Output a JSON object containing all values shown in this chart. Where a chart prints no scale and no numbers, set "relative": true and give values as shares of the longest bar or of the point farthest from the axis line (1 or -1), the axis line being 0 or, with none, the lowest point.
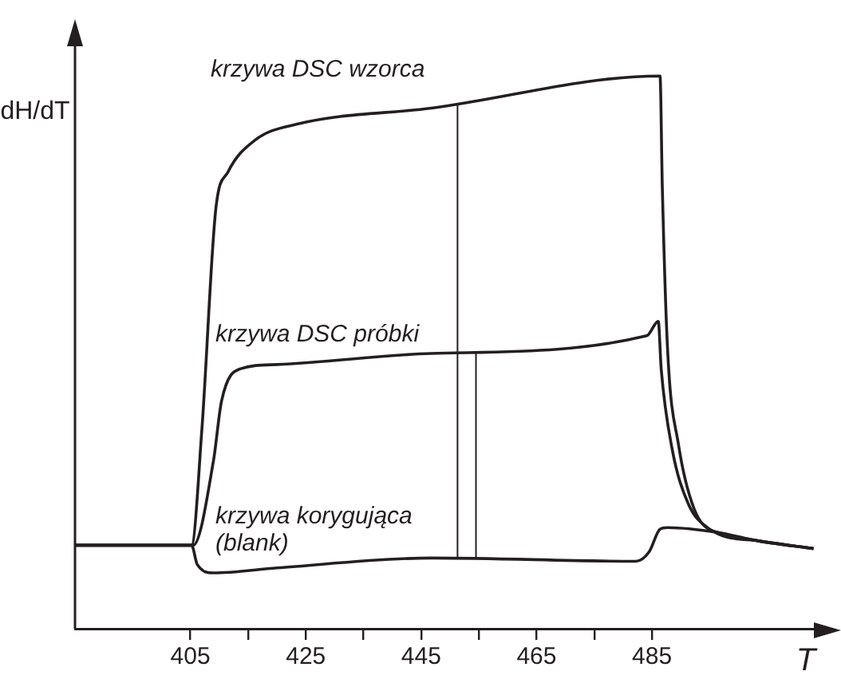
{
  "chart_data": {
    "type": "line",
    "relative": true,
    "xlabel": "T",
    "ylabel": "dH/dT",
    "xlim": [
      385,
      515
    ],
    "xticks": [
      405,
      {
        "value": 415,
        "label": null
      },
      425,
      {
        "value": 435,
        "label": null
      },
      445,
      {
        "value": 455,
        "label": null
      },
      465,
      {
        "value": 475,
        "label": null
      },
      485
    ],
    "grid": false,
    "legend": false,
    "marker": "none",
    "line_style": "solid",
    "series": [
      {
        "name": "krzywa DSC wzorca",
        "color": "#231f20",
        "x": [
          385,
          405.2,
          407,
          409.4,
          411.5,
          416.2,
          423.5,
          446.8,
          486.4,
          486.8,
          487.7,
          489.6,
          492.3,
          496,
          503.4,
          513
        ],
        "values": [
          0.151,
          0.151,
          0.362,
          0.759,
          0.826,
          0.884,
          0.913,
          0.942,
          1.0,
          0.797,
          0.507,
          0.333,
          0.217,
          0.174,
          0.159,
          0.145
        ]
      },
      {
        "name": "krzywa DSC próbki",
        "color": "#231f20",
        "x": [
          385,
          405.5,
          409,
          410.4,
          413.6,
          420,
          446.8,
          484.1,
          486.1,
          486.6,
          488.5,
          491.3,
          495,
          496.5,
          503.4,
          513
        ],
        "values": [
          0.151,
          0.151,
          0.304,
          0.412,
          0.47,
          0.478,
          0.498,
          0.53,
          0.556,
          0.47,
          0.325,
          0.226,
          0.18,
          0.174,
          0.159,
          0.145
        ]
      },
      {
        "name": "krzywa korygująca (blank)",
        "color": "#231f20",
        "x": [
          385,
          405.2,
          406.2,
          409,
          420,
          446.8,
          482.2,
          484.5,
          486.4,
          487.7,
          496.5,
          503.4,
          513
        ],
        "values": [
          0.151,
          0.151,
          0.116,
          0.101,
          0.11,
          0.128,
          0.122,
          0.139,
          0.18,
          0.183,
          0.174,
          0.159,
          0.145
        ]
      },
      {
        "color": "#231f20",
        "x": [
          451.3,
          451.3
        ],
        "values": [
          0.948,
          0.128
        ]
      },
      {
        "color": "#231f20",
        "x": [
          454.5,
          454.5
        ],
        "values": [
          0.499,
          0.128
        ]
      }
    ]
  }
}
